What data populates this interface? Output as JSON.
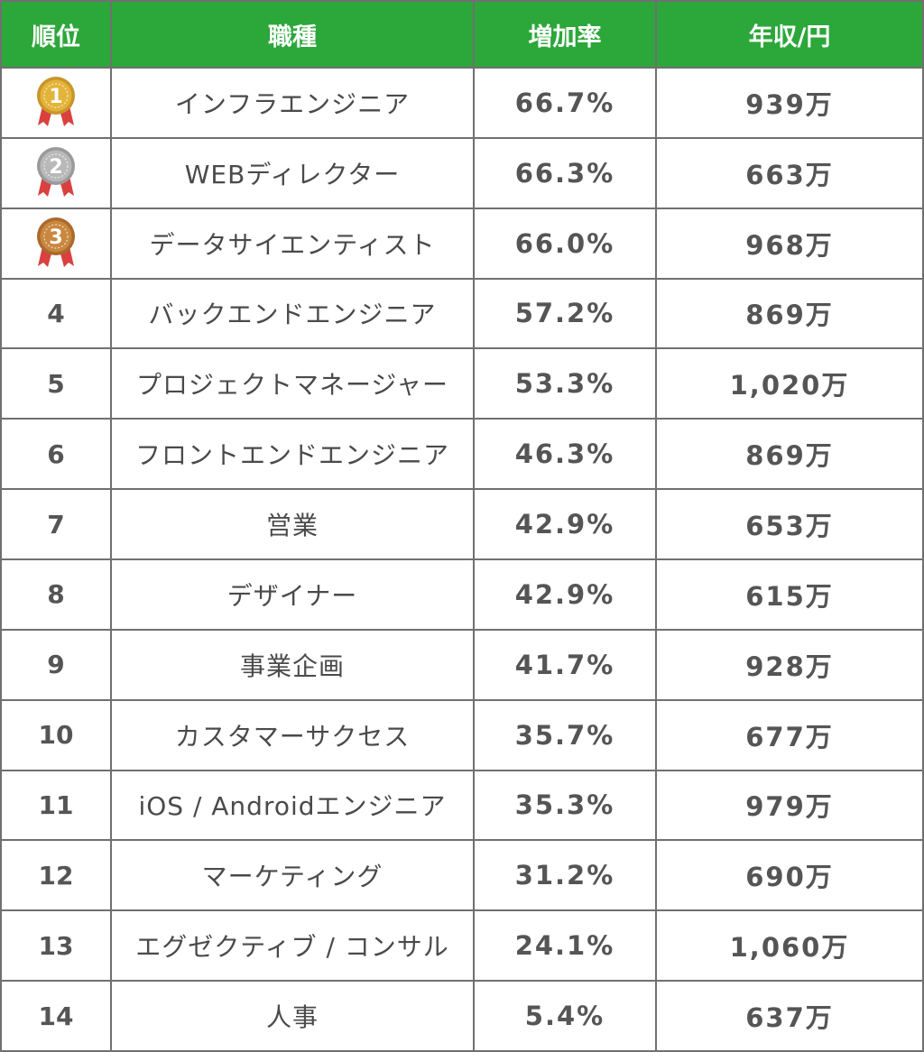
{
  "colors": {
    "header_bg": "#2ca73a",
    "header_text": "#ffffff",
    "grid_line": "#707070",
    "body_text": "#555555",
    "gold": "#e3b43a",
    "silver": "#b9b9b9",
    "bronze": "#c9873f",
    "ribbon": "#d9413f"
  },
  "table": {
    "headers": {
      "rank": "順位",
      "job": "職種",
      "rate": "増加率",
      "salary": "年収/円"
    },
    "rows": [
      {
        "rank": "1",
        "medal": "gold",
        "job": "インフラエンジニア",
        "rate": "66.7%",
        "salary": "939万"
      },
      {
        "rank": "2",
        "medal": "silver",
        "job": "WEBディレクター",
        "rate": "66.3%",
        "salary": "663万"
      },
      {
        "rank": "3",
        "medal": "bronze",
        "job": "データサイエンティスト",
        "rate": "66.0%",
        "salary": "968万"
      },
      {
        "rank": "4",
        "medal": null,
        "job": "バックエンドエンジニア",
        "rate": "57.2%",
        "salary": "869万"
      },
      {
        "rank": "5",
        "medal": null,
        "job": "プロジェクトマネージャー",
        "rate": "53.3%",
        "salary": "1,020万"
      },
      {
        "rank": "6",
        "medal": null,
        "job": "フロントエンドエンジニア",
        "rate": "46.3%",
        "salary": "869万"
      },
      {
        "rank": "7",
        "medal": null,
        "job": "営業",
        "rate": "42.9%",
        "salary": "653万"
      },
      {
        "rank": "8",
        "medal": null,
        "job": "デザイナー",
        "rate": "42.9%",
        "salary": "615万"
      },
      {
        "rank": "9",
        "medal": null,
        "job": "事業企画",
        "rate": "41.7%",
        "salary": "928万"
      },
      {
        "rank": "10",
        "medal": null,
        "job": "カスタマーサクセス",
        "rate": "35.7%",
        "salary": "677万"
      },
      {
        "rank": "11",
        "medal": null,
        "job": "iOS / Androidエンジニア",
        "rate": "35.3%",
        "salary": "979万"
      },
      {
        "rank": "12",
        "medal": null,
        "job": "マーケティング",
        "rate": "31.2%",
        "salary": "690万"
      },
      {
        "rank": "13",
        "medal": null,
        "job": "エグゼクティブ / コンサル",
        "rate": "24.1%",
        "salary": "1,060万"
      },
      {
        "rank": "14",
        "medal": null,
        "job": "人事",
        "rate": "5.4%",
        "salary": "637万"
      }
    ]
  }
}
